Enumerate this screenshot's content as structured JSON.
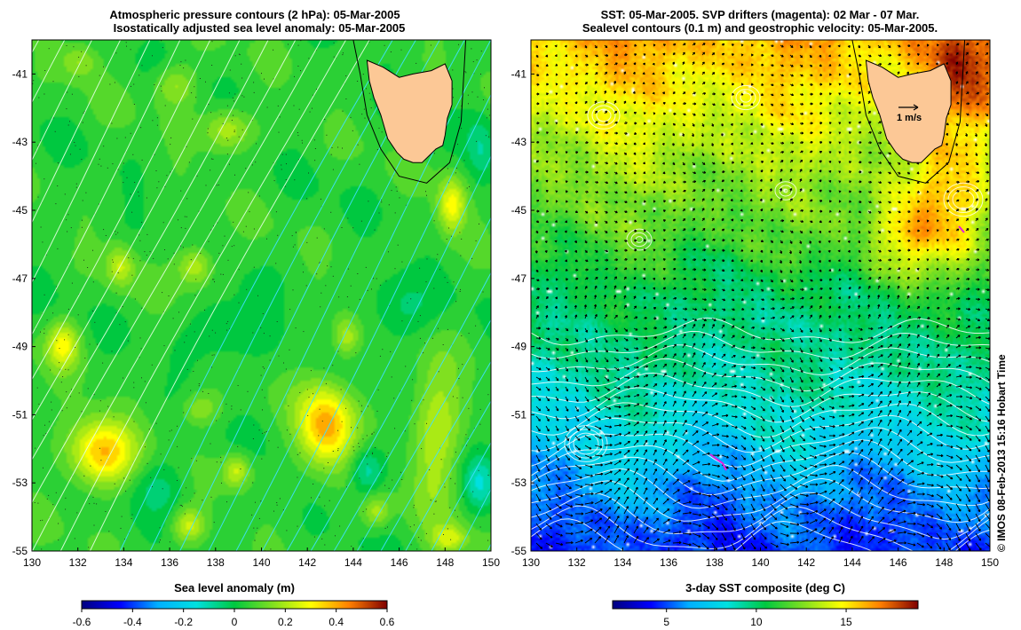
{
  "chart_data": [
    {
      "type": "heatmap",
      "title_line1": "Atmospheric pressure contours (2 hPa): 05-Mar-2005",
      "title_line2": "Isostatically adjusted sea level anomaly: 05-Mar-2005",
      "xlim": [
        130,
        150
      ],
      "ylim": [
        -55,
        -40
      ],
      "x_ticks": [
        130,
        132,
        134,
        136,
        138,
        140,
        142,
        144,
        146,
        148,
        150
      ],
      "y_ticks": [
        -41,
        -43,
        -45,
        -47,
        -49,
        -51,
        -53,
        -55
      ],
      "x_tick_labels": [
        "130",
        "132",
        "134",
        "136",
        "138",
        "140",
        "142",
        "144",
        "146",
        "148",
        "150"
      ],
      "y_tick_labels": [
        "-41",
        "-43",
        "-45",
        "-47",
        "-49",
        "-51",
        "-53",
        "-55"
      ],
      "colorbar": {
        "title": "Sea level anomaly (m)",
        "min": -0.6,
        "max": 0.6,
        "ticks": [
          -0.6,
          -0.4,
          -0.2,
          0,
          0.2,
          0.4,
          0.6
        ],
        "tick_labels": [
          "-0.6",
          "-0.4",
          "-0.2",
          "0",
          "0.2",
          "0.4",
          "0.6"
        ]
      },
      "background_value": 0.05,
      "anomaly_blobs": [
        {
          "lon": 133.0,
          "lat": -52.1,
          "value": 0.38,
          "rlon": 1.4,
          "rlat": 1.0
        },
        {
          "lon": 142.8,
          "lat": -51.3,
          "value": 0.4,
          "rlon": 1.2,
          "rlat": 1.2
        },
        {
          "lon": 147.6,
          "lat": -51.6,
          "value": 0.22,
          "rlon": 1.1,
          "rlat": 2.2
        },
        {
          "lon": 131.3,
          "lat": -48.9,
          "value": 0.28,
          "rlon": 0.7,
          "rlat": 0.7
        },
        {
          "lon": 133.8,
          "lat": -46.6,
          "value": 0.22,
          "rlon": 0.6,
          "rlat": 0.6
        },
        {
          "lon": 137.1,
          "lat": -46.6,
          "value": 0.24,
          "rlon": 0.8,
          "rlat": 0.6
        },
        {
          "lon": 148.3,
          "lat": -44.8,
          "value": 0.3,
          "rlon": 0.6,
          "rlat": 0.8
        },
        {
          "lon": 138.5,
          "lat": -42.6,
          "value": 0.22,
          "rlon": 1.0,
          "rlat": 0.6
        },
        {
          "lon": 136.2,
          "lat": -41.3,
          "value": 0.2,
          "rlon": 0.9,
          "rlat": 0.6
        },
        {
          "lon": 132.0,
          "lat": -40.6,
          "value": 0.18,
          "rlon": 0.8,
          "rlat": 0.5
        },
        {
          "lon": 143.7,
          "lat": -48.7,
          "value": 0.22,
          "rlon": 0.6,
          "rlat": 0.6
        },
        {
          "lon": 138.9,
          "lat": -52.6,
          "value": 0.24,
          "rlon": 0.6,
          "rlat": 0.5
        },
        {
          "lon": 137.3,
          "lat": -50.8,
          "value": 0.18,
          "rlon": 0.9,
          "rlat": 0.5
        },
        {
          "lon": 136.8,
          "lat": -54.2,
          "value": 0.24,
          "rlon": 0.7,
          "rlat": 0.5
        },
        {
          "lon": 148.2,
          "lat": -54.6,
          "value": 0.24,
          "rlon": 0.8,
          "rlat": 0.4
        },
        {
          "lon": 145.0,
          "lat": -53.8,
          "value": 0.2,
          "rlon": 0.6,
          "rlat": 0.5
        },
        {
          "lon": 144.6,
          "lat": -52.6,
          "value": -0.12,
          "rlon": 0.7,
          "rlat": 0.7
        },
        {
          "lon": 149.5,
          "lat": -53.0,
          "value": -0.1,
          "rlon": 0.7,
          "rlat": 0.8
        },
        {
          "lon": 135.5,
          "lat": -53.0,
          "value": -0.04,
          "rlon": 1.2,
          "rlat": 0.8
        },
        {
          "lon": 149.6,
          "lat": -43.2,
          "value": -0.06,
          "rlon": 0.6,
          "rlat": 1.0
        },
        {
          "lon": 146.0,
          "lat": -48.0,
          "value": -0.05,
          "rlon": 1.4,
          "rlat": 1.0
        },
        {
          "lon": 138.3,
          "lat": -48.5,
          "value": -0.02,
          "rlon": 1.6,
          "rlat": 1.2
        }
      ]
    },
    {
      "type": "heatmap",
      "title_line1": "SST: 05-Mar-2005. SVP drifters (magenta): 02 Mar - 07 Mar.",
      "title_line2": "Sealevel contours (0.1 m) and geostrophic velocity: 05-Mar-2005.",
      "xlim": [
        130,
        150
      ],
      "ylim": [
        -55,
        -40
      ],
      "x_ticks": [
        130,
        132,
        134,
        136,
        138,
        140,
        142,
        144,
        146,
        148,
        150
      ],
      "y_ticks": [
        -41,
        -43,
        -45,
        -47,
        -49,
        -51,
        -53,
        -55
      ],
      "x_tick_labels": [
        "130",
        "132",
        "134",
        "136",
        "138",
        "140",
        "142",
        "144",
        "146",
        "148",
        "150"
      ],
      "y_tick_labels": [
        "-41",
        "-43",
        "-45",
        "-47",
        "-49",
        "-51",
        "-53",
        "-55"
      ],
      "colorbar": {
        "title": "3-day SST composite (deg C)",
        "min": 2,
        "max": 19,
        "ticks": [
          5,
          10,
          15
        ],
        "tick_labels": [
          "5",
          "10",
          "15"
        ]
      },
      "sst_profile": [
        {
          "lat": -40.0,
          "value": 16.0
        },
        {
          "lat": -42.0,
          "value": 14.5
        },
        {
          "lat": -44.0,
          "value": 12.8
        },
        {
          "lat": -45.5,
          "value": 12.0
        },
        {
          "lat": -47.0,
          "value": 10.5
        },
        {
          "lat": -49.5,
          "value": 9.5
        },
        {
          "lat": -51.5,
          "value": 8.0
        },
        {
          "lat": -53.0,
          "value": 6.0
        },
        {
          "lat": -55.0,
          "value": 4.5
        }
      ],
      "sst_features": [
        {
          "lon": 149.0,
          "lat": -41.0,
          "value": 18.0,
          "rlon": 1.5,
          "rlat": 1.5
        },
        {
          "lon": 148.0,
          "lat": -45.0,
          "value": 15.5,
          "rlon": 2.0,
          "rlat": 1.8
        },
        {
          "lon": 146.0,
          "lat": -46.0,
          "value": 14.5,
          "rlon": 1.5,
          "rlat": 1.2
        },
        {
          "lon": 141.0,
          "lat": -48.0,
          "value": 9.5,
          "rlon": 2.5,
          "rlat": 1.2
        },
        {
          "lon": 133.0,
          "lat": -53.0,
          "value": 6.5,
          "rlon": 2.0,
          "rlat": 1.0
        }
      ],
      "vector_scale_label": "1 m/s"
    }
  ],
  "credit": "© IMOS 08-Feb-2013 15:16 Hobart Time"
}
